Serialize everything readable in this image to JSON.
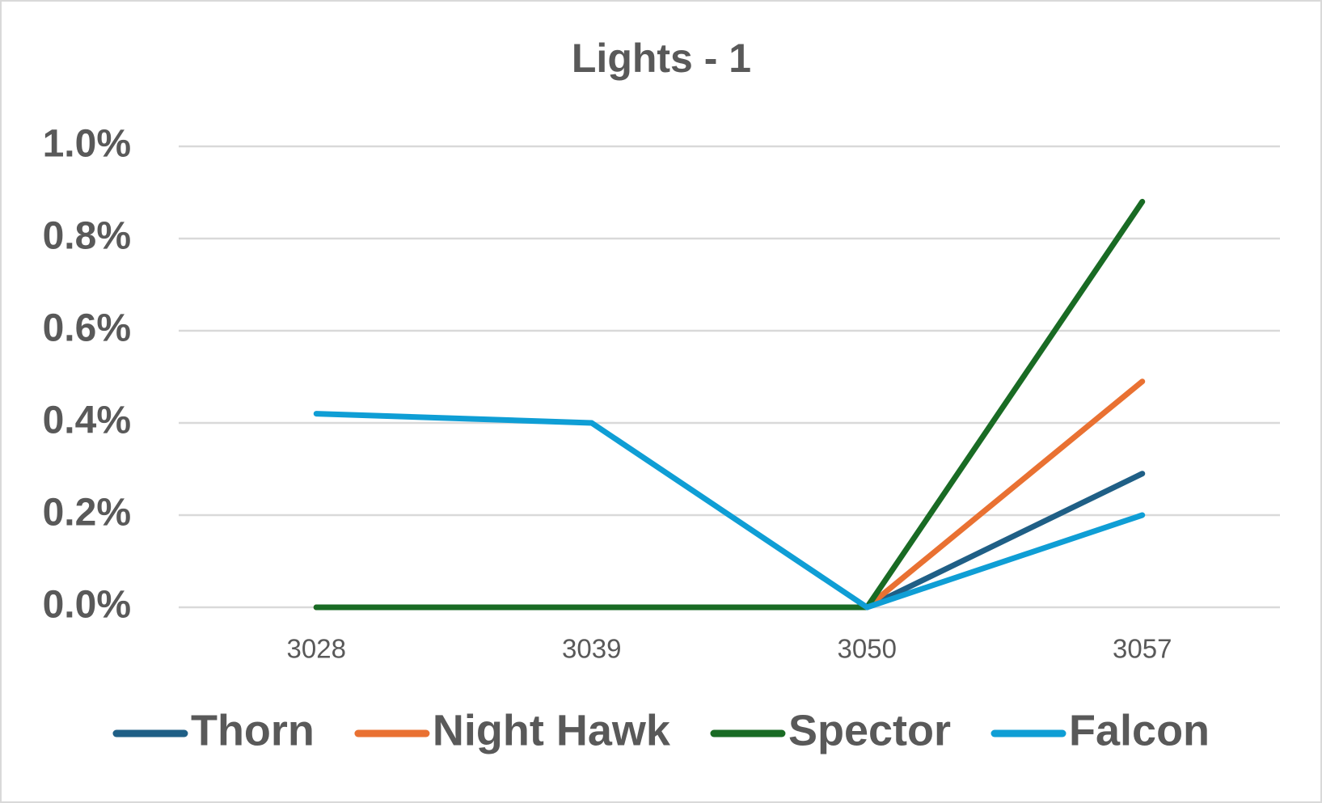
{
  "chart_data": {
    "type": "line",
    "title": "Lights - 1",
    "categories": [
      "3028",
      "3039",
      "3050",
      "3057"
    ],
    "series": [
      {
        "name": "Thorn",
        "color": "#1f5f86",
        "values": [
          0,
          0,
          0,
          0.29
        ]
      },
      {
        "name": "Night Hawk",
        "color": "#e97132",
        "values": [
          0,
          0,
          0,
          0.49
        ]
      },
      {
        "name": "Spector",
        "color": "#196b24",
        "values": [
          0,
          0,
          0,
          0.88
        ]
      },
      {
        "name": "Falcon",
        "color": "#0f9ed5",
        "values": [
          0.42,
          0.4,
          0,
          0.2
        ]
      }
    ],
    "ylim": [
      0,
      1.0
    ],
    "yticks": [
      {
        "value": 0,
        "label": "0.0%"
      },
      {
        "value": 0.2,
        "label": "0.2%"
      },
      {
        "value": 0.4,
        "label": "0.4%"
      },
      {
        "value": 0.6,
        "label": "0.6%"
      },
      {
        "value": 0.8,
        "label": "0.8%"
      },
      {
        "value": 1.0,
        "label": "1.0%"
      }
    ],
    "grid": true,
    "legend": "bottom"
  }
}
